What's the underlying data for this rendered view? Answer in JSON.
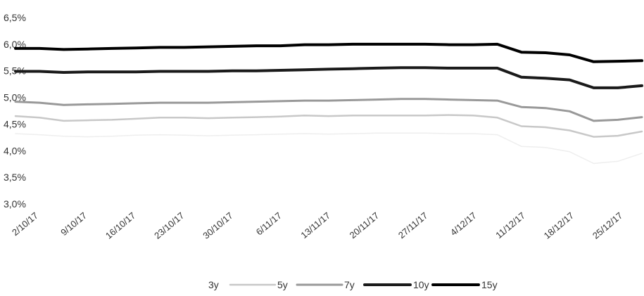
{
  "chart_data": {
    "type": "line",
    "title": "",
    "xlabel": "",
    "ylabel": "",
    "ylim": [
      3.0,
      6.5
    ],
    "y_tick_values": [
      3.0,
      3.5,
      4.0,
      4.5,
      5.0,
      5.5,
      6.0,
      6.5
    ],
    "y_tick_labels": [
      "3,0%",
      "3,5%",
      "4,0%",
      "4,5%",
      "5,0%",
      "5,5%",
      "6,0%",
      "6,5%"
    ],
    "x_tick_labels": [
      "2/10/17",
      "9/10/17",
      "16/10/17",
      "23/10/17",
      "30/10/17",
      "6/11/17",
      "13/11/17",
      "20/11/17",
      "27/11/17",
      "4/12/17",
      "11/12/17",
      "18/12/17",
      "25/12/17"
    ],
    "x": [
      "2/10/17",
      "5/10/17",
      "9/10/17",
      "12/10/17",
      "16/10/17",
      "19/10/17",
      "23/10/17",
      "26/10/17",
      "30/10/17",
      "2/11/17",
      "6/11/17",
      "9/11/17",
      "13/11/17",
      "16/11/17",
      "20/11/17",
      "23/11/17",
      "27/11/17",
      "30/11/17",
      "4/12/17",
      "7/12/17",
      "11/12/17",
      "14/12/17",
      "18/12/17",
      "21/12/17",
      "25/12/17",
      "28/12/17",
      "29/12/17"
    ],
    "grid": false,
    "legend_position": "bottom",
    "series": [
      {
        "name": "3y",
        "color": "#eeeeee",
        "width": 1.5,
        "values": [
          4.32,
          4.3,
          4.27,
          4.26,
          4.27,
          4.29,
          4.3,
          4.29,
          4.28,
          4.29,
          4.3,
          4.31,
          4.32,
          4.31,
          4.32,
          4.33,
          4.33,
          4.33,
          4.32,
          4.32,
          4.3,
          4.08,
          4.06,
          3.98,
          3.76,
          3.8,
          3.95
        ]
      },
      {
        "name": "5y",
        "color": "#c8c8c8",
        "width": 2.5,
        "values": [
          4.65,
          4.62,
          4.56,
          4.57,
          4.58,
          4.6,
          4.62,
          4.62,
          4.61,
          4.62,
          4.63,
          4.64,
          4.66,
          4.65,
          4.66,
          4.66,
          4.66,
          4.66,
          4.67,
          4.66,
          4.62,
          4.46,
          4.44,
          4.38,
          4.26,
          4.28,
          4.36
        ]
      },
      {
        "name": "7y",
        "color": "#999999",
        "width": 3,
        "values": [
          4.92,
          4.9,
          4.86,
          4.87,
          4.88,
          4.89,
          4.9,
          4.9,
          4.9,
          4.91,
          4.92,
          4.93,
          4.94,
          4.94,
          4.95,
          4.96,
          4.97,
          4.97,
          4.96,
          4.95,
          4.94,
          4.82,
          4.8,
          4.74,
          4.56,
          4.58,
          4.63
        ]
      },
      {
        "name": "10y",
        "color": "#1a1a1a",
        "width": 4,
        "values": [
          5.49,
          5.49,
          5.47,
          5.48,
          5.48,
          5.48,
          5.49,
          5.49,
          5.49,
          5.5,
          5.5,
          5.51,
          5.52,
          5.53,
          5.54,
          5.55,
          5.56,
          5.56,
          5.55,
          5.55,
          5.55,
          5.38,
          5.36,
          5.33,
          5.18,
          5.18,
          5.22
        ]
      },
      {
        "name": "15y",
        "color": "#000000",
        "width": 4,
        "values": [
          5.92,
          5.92,
          5.9,
          5.91,
          5.92,
          5.93,
          5.94,
          5.94,
          5.95,
          5.96,
          5.97,
          5.97,
          5.99,
          5.99,
          6.0,
          6.0,
          6.0,
          6.0,
          5.99,
          5.99,
          6.0,
          5.85,
          5.84,
          5.8,
          5.67,
          5.68,
          5.69
        ]
      }
    ]
  }
}
